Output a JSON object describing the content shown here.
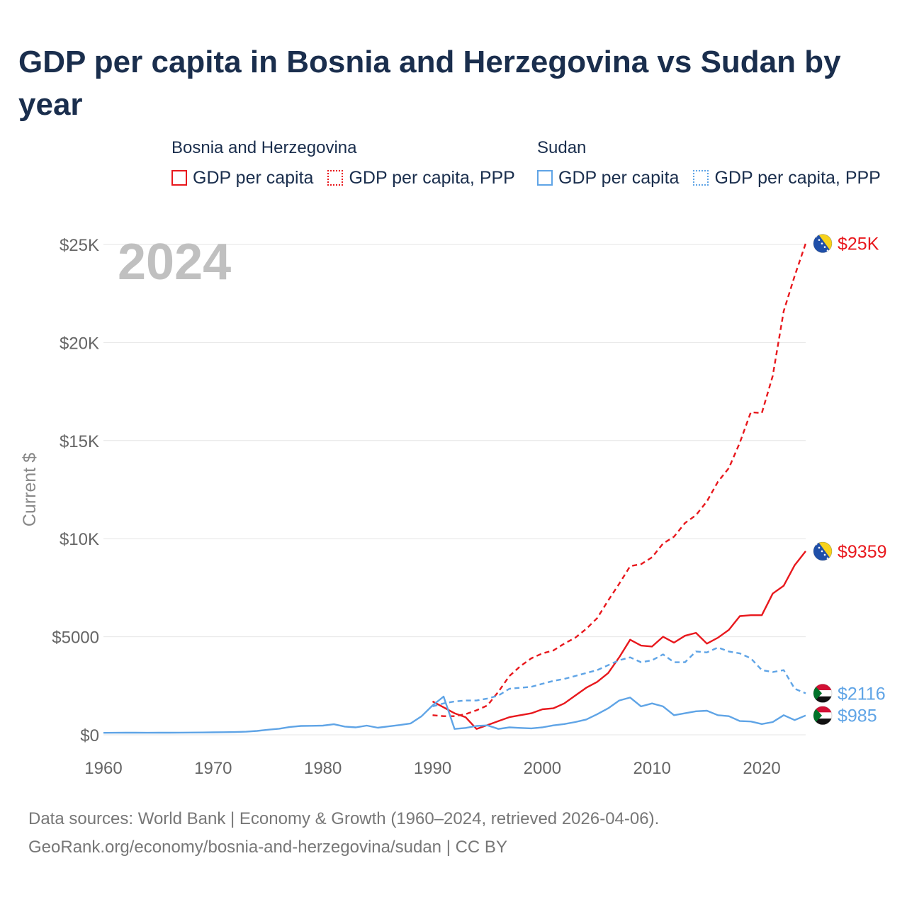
{
  "title": "GDP per capita in Bosnia and Herzegovina vs Sudan by year",
  "year_label": "2024",
  "legend": {
    "groups": [
      {
        "name": "Bosnia and Herzegovina",
        "items": [
          "GDP per capita",
          "GDP per capita, PPP"
        ]
      },
      {
        "name": "Sudan",
        "items": [
          "GDP per capita",
          "GDP per capita, PPP"
        ]
      }
    ]
  },
  "colors": {
    "bih": "#e8181d",
    "sudan": "#5fa4e6",
    "grid": "#e6e6e6",
    "axis_text": "#666666",
    "year_label": "#c0c0c0"
  },
  "chart_data": {
    "type": "line",
    "title": "GDP per capita in Bosnia and Herzegovina vs Sudan by year",
    "xlabel": "",
    "ylabel": "Current $",
    "xlim": [
      1960,
      2024
    ],
    "ylim": [
      0,
      25000
    ],
    "x_ticks": [
      1960,
      1970,
      1980,
      1990,
      2000,
      2010,
      2020
    ],
    "x_tick_labels": [
      "1960",
      "1970",
      "1980",
      "1990",
      "2000",
      "2010",
      "2020"
    ],
    "y_ticks": [
      0,
      5000,
      10000,
      15000,
      20000,
      25000
    ],
    "y_tick_labels": [
      "$0",
      "$5000",
      "$10K",
      "$15K",
      "$20K",
      "$25K"
    ],
    "series": [
      {
        "name": "Bosnia and Herzegovina — GDP per capita",
        "country": "bih",
        "style": "solid",
        "end_label": "$9359",
        "x": [
          1990,
          1991,
          1992,
          1993,
          1994,
          1995,
          1996,
          1997,
          1998,
          1999,
          2000,
          2001,
          2002,
          2003,
          2004,
          2005,
          2006,
          2007,
          2008,
          2009,
          2010,
          2011,
          2012,
          2013,
          2014,
          2015,
          2016,
          2017,
          2018,
          2019,
          2020,
          2021,
          2022,
          2023,
          2024
        ],
        "values": [
          1700,
          1400,
          1100,
          900,
          300,
          500,
          700,
          900,
          1000,
          1100,
          1300,
          1350,
          1600,
          2000,
          2400,
          2700,
          3150,
          3950,
          4850,
          4550,
          4500,
          5000,
          4700,
          5050,
          5200,
          4650,
          4950,
          5350,
          6050,
          6100,
          6100,
          7200,
          7600,
          8650,
          9359
        ]
      },
      {
        "name": "Bosnia and Herzegovina — GDP per capita, PPP",
        "country": "bih",
        "style": "dashed",
        "end_label": "$25K",
        "x": [
          1990,
          1991,
          1992,
          1993,
          1994,
          1995,
          1996,
          1997,
          1998,
          1999,
          2000,
          2001,
          2002,
          2003,
          2004,
          2005,
          2006,
          2007,
          2008,
          2009,
          2010,
          2011,
          2012,
          2013,
          2014,
          2015,
          2016,
          2017,
          2018,
          2019,
          2020,
          2021,
          2022,
          2023,
          2024
        ],
        "values": [
          1000,
          950,
          950,
          1050,
          1250,
          1500,
          2200,
          3000,
          3500,
          3900,
          4150,
          4300,
          4650,
          4950,
          5400,
          5950,
          6850,
          7700,
          8600,
          8700,
          9050,
          9750,
          10100,
          10800,
          11200,
          11900,
          12900,
          13600,
          14900,
          16450,
          16400,
          18300,
          21600,
          23400,
          25050
        ]
      },
      {
        "name": "Sudan — GDP per capita",
        "country": "sudan",
        "style": "solid",
        "end_label": "$985",
        "x": [
          1960,
          1961,
          1962,
          1963,
          1964,
          1965,
          1966,
          1967,
          1968,
          1969,
          1970,
          1971,
          1972,
          1973,
          1974,
          1975,
          1976,
          1977,
          1978,
          1979,
          1980,
          1981,
          1982,
          1983,
          1984,
          1985,
          1986,
          1987,
          1988,
          1989,
          1990,
          1991,
          1992,
          1993,
          1994,
          1995,
          1996,
          1997,
          1998,
          1999,
          2000,
          2001,
          2002,
          2003,
          2004,
          2005,
          2006,
          2007,
          2008,
          2009,
          2010,
          2011,
          2012,
          2013,
          2014,
          2015,
          2016,
          2017,
          2018,
          2019,
          2020,
          2021,
          2022,
          2023,
          2024
        ],
        "values": [
          100,
          105,
          110,
          108,
          105,
          108,
          110,
          112,
          115,
          118,
          125,
          135,
          140,
          160,
          200,
          260,
          310,
          400,
          450,
          460,
          470,
          540,
          420,
          380,
          470,
          360,
          430,
          500,
          580,
          950,
          1500,
          1950,
          300,
          350,
          450,
          480,
          300,
          380,
          350,
          330,
          380,
          480,
          550,
          650,
          780,
          1050,
          1350,
          1750,
          1900,
          1450,
          1600,
          1450,
          1000,
          1100,
          1200,
          1230,
          1000,
          950,
          700,
          680,
          550,
          650,
          1000,
          750,
          985
        ]
      },
      {
        "name": "Sudan — GDP per capita, PPP",
        "country": "sudan",
        "style": "dashed",
        "end_label": "$2116",
        "x": [
          1990,
          1991,
          1992,
          1993,
          1994,
          1995,
          1996,
          1997,
          1998,
          1999,
          2000,
          2001,
          2002,
          2003,
          2004,
          2005,
          2006,
          2007,
          2008,
          2009,
          2010,
          2011,
          2012,
          2013,
          2014,
          2015,
          2016,
          2017,
          2018,
          2019,
          2020,
          2021,
          2022,
          2023,
          2024
        ],
        "values": [
          1450,
          1600,
          1700,
          1750,
          1750,
          1850,
          2000,
          2350,
          2400,
          2450,
          2600,
          2750,
          2850,
          3000,
          3150,
          3300,
          3550,
          3800,
          3950,
          3700,
          3800,
          4100,
          3700,
          3700,
          4250,
          4200,
          4450,
          4250,
          4150,
          3900,
          3300,
          3200,
          3300,
          2350,
          2116
        ]
      }
    ]
  },
  "footer": {
    "line1": "Data sources: World Bank | Economy & Growth (1960–2024, retrieved 2026-04-06).",
    "line2": "GeoRank.org/economy/bosnia-and-herzegovina/sudan | CC BY"
  }
}
